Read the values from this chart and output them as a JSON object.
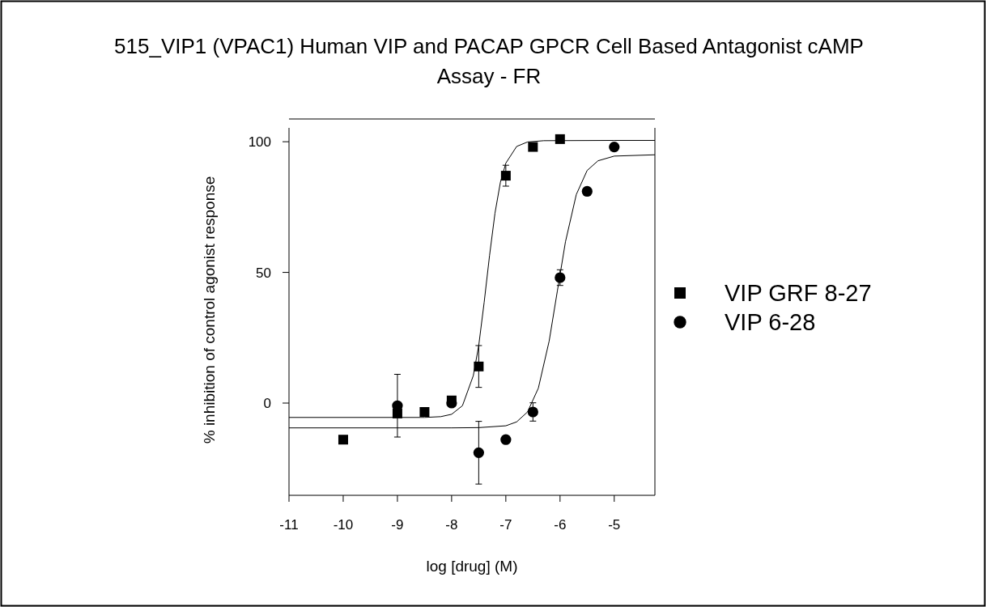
{
  "chart_data": {
    "type": "scatter",
    "title": "515_VIP1 (VPAC1) Human VIP and PACAP GPCR Cell Based Antagonist cAMP Assay - FR",
    "xlabel": "log [drug] (M)",
    "ylabel": "% inhibition of  control agonist response",
    "xlim": [
      -11,
      -4.25
    ],
    "ylim": [
      -35.3,
      105.3
    ],
    "xticks": [
      -11,
      -10,
      -9,
      -8,
      -7,
      -6,
      -5
    ],
    "yticks": [
      0,
      50,
      100
    ],
    "legend": "right",
    "grid": false,
    "series": [
      {
        "name": "VIP GRF 8-27",
        "marker": "square",
        "color": "#000000",
        "x": [
          -10,
          -9,
          -8.5,
          -8,
          -7.5,
          -7,
          -6.5,
          -6
        ],
        "values": [
          -14,
          -4,
          -3.4,
          1,
          14,
          87,
          98,
          101
        ],
        "errors": [
          null,
          null,
          null,
          null,
          8,
          4,
          null,
          null
        ]
      },
      {
        "name": "VIP 6-28",
        "marker": "circle",
        "color": "#000000",
        "x": [
          -9,
          -8,
          -7.5,
          -7,
          -6.5,
          -6,
          -5.5,
          -5
        ],
        "values": [
          -1,
          0,
          -19,
          -14,
          -3.4,
          48,
          81,
          98
        ],
        "errors": [
          12,
          null,
          12,
          null,
          3.5,
          3,
          null,
          null
        ]
      },
      {
        "type": "line",
        "marker": "none",
        "color": "#000000",
        "x": [
          -11,
          -9,
          -8.5,
          -8.2,
          -8,
          -7.8,
          -7.6,
          -7.5,
          -7.4,
          -7.3,
          -7.2,
          -7.1,
          -7,
          -6.8,
          -6.6,
          -6.3,
          -5,
          -4.25
        ],
        "values": [
          -5.5,
          -5.5,
          -5.5,
          -5.2,
          -4.3,
          -1,
          10.5,
          22,
          38.5,
          56.5,
          72.7,
          84.5,
          91.8,
          98.2,
          99.9,
          100.4,
          100.5,
          100.5
        ]
      },
      {
        "type": "line",
        "marker": "none",
        "color": "#000000",
        "x": [
          -11,
          -8,
          -7.5,
          -7,
          -6.8,
          -6.6,
          -6.4,
          -6.2,
          -6.05,
          -5.9,
          -5.7,
          -5.5,
          -5.3,
          -5,
          -4.25
        ],
        "values": [
          -9.5,
          -9.5,
          -9.4,
          -8.7,
          -7.2,
          -3.4,
          5.7,
          23.8,
          42.8,
          61.7,
          79.8,
          89,
          92.7,
          94.5,
          95
        ]
      }
    ]
  }
}
